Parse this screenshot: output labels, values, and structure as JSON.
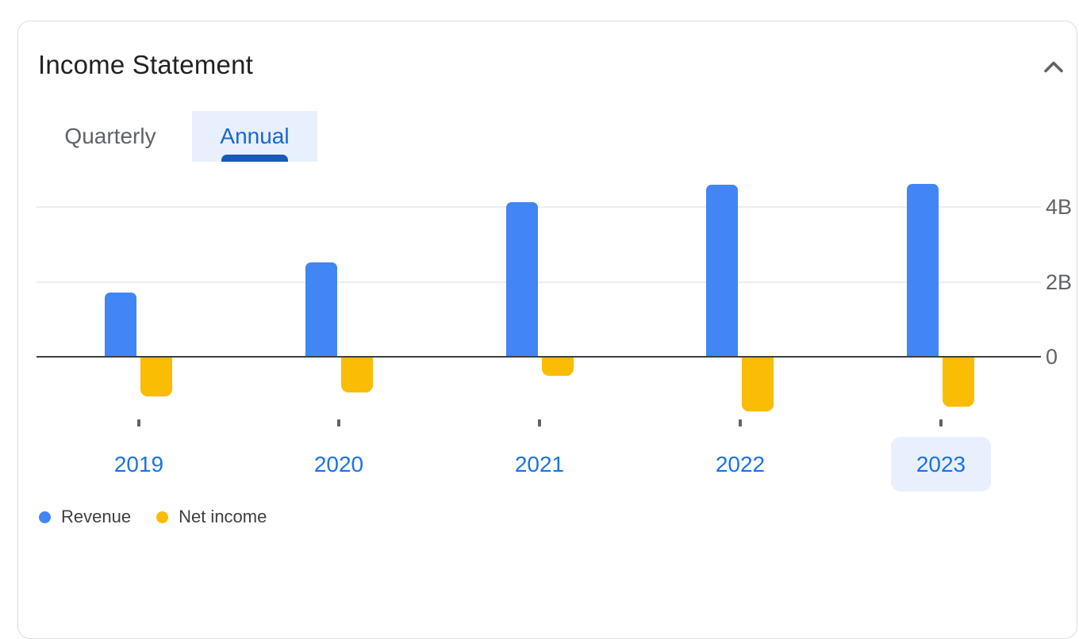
{
  "panel": {
    "title": "Income Statement",
    "collapse_icon": "chevron-up"
  },
  "tabs": {
    "items": [
      {
        "label": "Quarterly",
        "active": false
      },
      {
        "label": "Annual",
        "active": true
      }
    ]
  },
  "chart_data": {
    "type": "bar",
    "title": "Income Statement",
    "xlabel": "",
    "ylabel": "",
    "unit": "B (billions USD)",
    "categories": [
      "2019",
      "2020",
      "2021",
      "2022",
      "2023"
    ],
    "series": [
      {
        "name": "Revenue",
        "color": "#4285f4",
        "values": [
          1.72,
          2.51,
          4.12,
          4.6,
          4.61
        ]
      },
      {
        "name": "Net income",
        "color": "#fbbc04",
        "values": [
          -1.03,
          -0.94,
          -0.49,
          -1.43,
          -1.32
        ]
      }
    ],
    "y_ticks": [
      {
        "value": 4,
        "label": "4B"
      },
      {
        "value": 2,
        "label": "2B"
      },
      {
        "value": 0,
        "label": "0"
      }
    ],
    "ylim": [
      -1.6,
      4.9
    ],
    "grid": true,
    "selected_category": "2023",
    "legend_position": "bottom-left"
  },
  "legend": {
    "items": [
      {
        "label": "Revenue",
        "color": "#4285f4"
      },
      {
        "label": "Net income",
        "color": "#fbbc04"
      }
    ]
  },
  "colors": {
    "revenue_bar": "#4285f4",
    "net_income_bar": "#fbbc04",
    "tab_active_text": "#1967d2",
    "tab_active_bg": "#e8f0fe",
    "tab_indicator": "#185abc",
    "tab_inactive_text": "#5f6368",
    "year_label_text": "#1a73e8",
    "selected_year_bg": "#e8f0fe",
    "axis_label_text": "#5f6368",
    "zero_line": "#3c4043",
    "gridline": "#eceef1",
    "card_border": "#dadce0",
    "title_text": "#202124"
  }
}
